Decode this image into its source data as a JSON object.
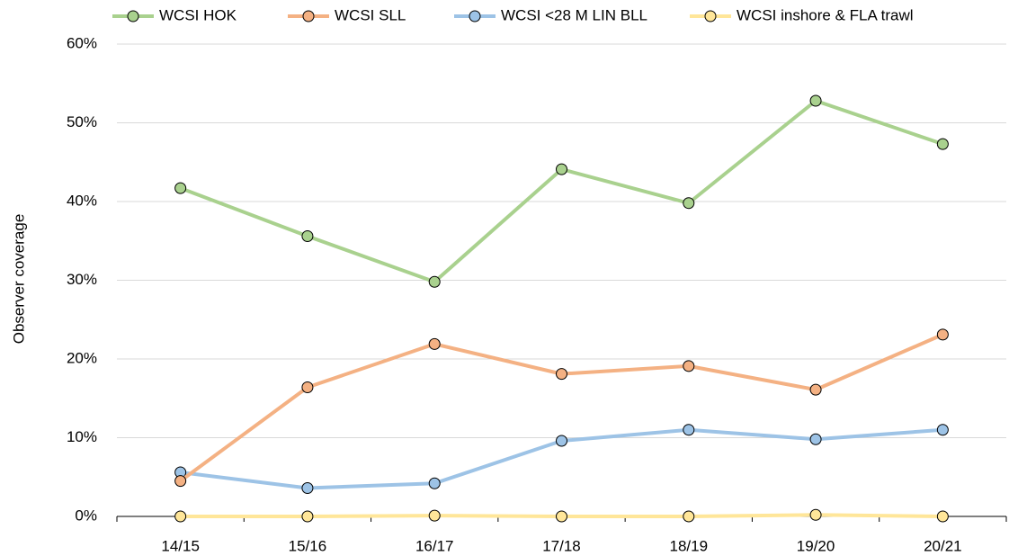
{
  "chart_data": {
    "type": "line",
    "y_label": "Observer coverage",
    "categories": [
      "14/15",
      "15/16",
      "16/17",
      "17/18",
      "18/19",
      "19/20",
      "20/21"
    ],
    "series": [
      {
        "name": "WCSI HOK",
        "color": "#a9d18e",
        "values": [
          41.7,
          35.6,
          29.8,
          44.1,
          39.8,
          52.8,
          47.3
        ]
      },
      {
        "name": "WCSI SLL",
        "color": "#f4b183",
        "values": [
          4.5,
          16.4,
          21.9,
          18.1,
          19.1,
          16.1,
          23.1
        ]
      },
      {
        "name": "WCSI <28 M LIN BLL",
        "color": "#9dc3e6",
        "values": [
          5.6,
          3.6,
          4.2,
          9.6,
          11.0,
          9.8,
          11.0
        ]
      },
      {
        "name": "WCSI inshore & FLA trawl",
        "color": "#ffe699",
        "values": [
          0,
          0,
          0.1,
          0,
          0,
          0.2,
          0
        ]
      }
    ],
    "ylim": [
      0,
      60
    ],
    "yticks": [
      {
        "value": 0,
        "label": "0%"
      },
      {
        "value": 10,
        "label": "10%"
      },
      {
        "value": 20,
        "label": "20%"
      },
      {
        "value": 30,
        "label": "30%"
      },
      {
        "value": 40,
        "label": "40%"
      },
      {
        "value": 50,
        "label": "50%"
      },
      {
        "value": 60,
        "label": "60%"
      }
    ],
    "grid": true,
    "legend": "top"
  }
}
